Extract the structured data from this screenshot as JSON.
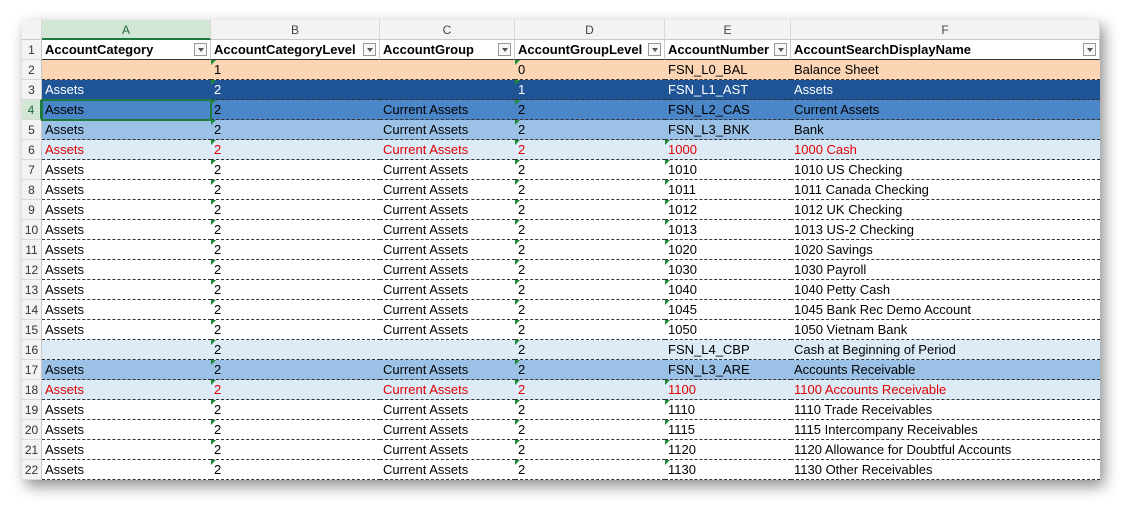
{
  "sheet": {
    "columns": [
      "A",
      "B",
      "C",
      "D",
      "E",
      "F"
    ],
    "header": {
      "num": "1",
      "cells": [
        "AccountCategory",
        "AccountCategoryLevel",
        "AccountGroup",
        "AccountGroupLevel",
        "AccountNumber",
        "AccountSearchDisplayName"
      ]
    },
    "rows": [
      {
        "num": "2",
        "cells": [
          null,
          "1",
          null,
          "0",
          "FSN_L0_BAL",
          "Balance Sheet"
        ]
      },
      {
        "num": "3",
        "cells": [
          "Assets",
          "2",
          null,
          "1",
          "FSN_L1_AST",
          "Assets"
        ]
      },
      {
        "num": "4",
        "cells": [
          "Assets",
          "2",
          "Current Assets",
          "2",
          "FSN_L2_CAS",
          "Current Assets"
        ]
      },
      {
        "num": "5",
        "cells": [
          "Assets",
          "2",
          "Current Assets",
          "2",
          "FSN_L3_BNK",
          "Bank"
        ]
      },
      {
        "num": "6",
        "cells": [
          "Assets",
          "2",
          "Current Assets",
          "2",
          "1000",
          "1000 Cash"
        ]
      },
      {
        "num": "7",
        "cells": [
          "Assets",
          "2",
          "Current Assets",
          "2",
          "1010",
          "1010 US Checking"
        ]
      },
      {
        "num": "8",
        "cells": [
          "Assets",
          "2",
          "Current Assets",
          "2",
          "1011",
          "1011 Canada Checking"
        ]
      },
      {
        "num": "9",
        "cells": [
          "Assets",
          "2",
          "Current Assets",
          "2",
          "1012",
          "1012 UK Checking"
        ]
      },
      {
        "num": "10",
        "cells": [
          "Assets",
          "2",
          "Current Assets",
          "2",
          "1013",
          "1013 US-2 Checking"
        ]
      },
      {
        "num": "11",
        "cells": [
          "Assets",
          "2",
          "Current Assets",
          "2",
          "1020",
          "1020 Savings"
        ]
      },
      {
        "num": "12",
        "cells": [
          "Assets",
          "2",
          "Current Assets",
          "2",
          "1030",
          "1030 Payroll"
        ]
      },
      {
        "num": "13",
        "cells": [
          "Assets",
          "2",
          "Current Assets",
          "2",
          "1040",
          "1040 Petty Cash"
        ]
      },
      {
        "num": "14",
        "cells": [
          "Assets",
          "2",
          "Current Assets",
          "2",
          "1045",
          "1045 Bank Rec Demo Account"
        ]
      },
      {
        "num": "15",
        "cells": [
          "Assets",
          "2",
          "Current Assets",
          "2",
          "1050",
          "1050 Vietnam Bank"
        ]
      },
      {
        "num": "16",
        "cells": [
          null,
          "2",
          null,
          "2",
          "FSN_L4_CBP",
          "Cash at Beginning of Period"
        ]
      },
      {
        "num": "17",
        "cells": [
          "Assets",
          "2",
          "Current Assets",
          "2",
          "FSN_L3_ARE",
          "Accounts Receivable"
        ]
      },
      {
        "num": "18",
        "cells": [
          "Assets",
          "2",
          "Current Assets",
          "2",
          "1100",
          "1100 Accounts Receivable"
        ]
      },
      {
        "num": "19",
        "cells": [
          "Assets",
          "2",
          "Current Assets",
          "2",
          "1110",
          "1110 Trade Receivables"
        ]
      },
      {
        "num": "20",
        "cells": [
          "Assets",
          "2",
          "Current Assets",
          "2",
          "1115",
          "1115 Intercompany Receivables"
        ]
      },
      {
        "num": "21",
        "cells": [
          "Assets",
          "2",
          "Current Assets",
          "2",
          "1120",
          "1120 Allowance for Doubtful Accounts"
        ]
      },
      {
        "num": "22",
        "cells": [
          "Assets",
          "2",
          "Current Assets",
          "2",
          "1130",
          "1130 Other Receivables"
        ]
      }
    ]
  }
}
